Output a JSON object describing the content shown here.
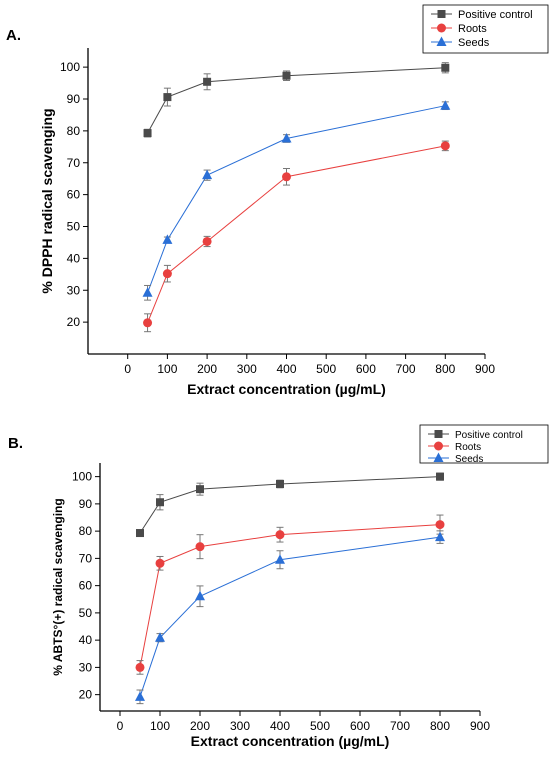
{
  "chart_data": [
    {
      "type": "line",
      "panel_label": "A.",
      "x": [
        50,
        100,
        200,
        400,
        800
      ],
      "xlabel": "Extract concentration (µg/mL)",
      "ylabel": "% DPPH  radical scavenging",
      "xlim": [
        -100,
        900
      ],
      "ylim": [
        10,
        106
      ],
      "xticks": [
        0,
        100,
        200,
        300,
        400,
        500,
        600,
        700,
        800,
        900
      ],
      "yticks": [
        20,
        30,
        40,
        50,
        60,
        70,
        80,
        90,
        100
      ],
      "legend": "top-right",
      "grid": false,
      "series": [
        {
          "name": "Positive control",
          "color": "#4a4a4a",
          "marker": "square",
          "values": [
            79.3,
            90.6,
            95.4,
            97.3,
            99.8
          ],
          "errors": [
            1.2,
            2.8,
            2.5,
            1.5,
            1.6
          ]
        },
        {
          "name": "Roots",
          "color": "#e8403f",
          "marker": "circle",
          "values": [
            19.8,
            35.2,
            45.3,
            65.6,
            75.3
          ],
          "errors": [
            2.8,
            2.6,
            1.6,
            2.6,
            1.5
          ]
        },
        {
          "name": "Seeds",
          "color": "#2a6fd6",
          "marker": "triangle",
          "values": [
            29.2,
            45.8,
            66.1,
            77.6,
            87.9
          ],
          "errors": [
            2.3,
            0.9,
            1.6,
            1.2,
            1.2
          ]
        }
      ]
    },
    {
      "type": "line",
      "panel_label": "B.",
      "x": [
        50,
        100,
        200,
        400,
        800
      ],
      "xlabel": "Extract concentration (µg/mL)",
      "ylabel": "% ABTS°(+) radical scavenging",
      "xlim": [
        -50,
        900
      ],
      "ylim": [
        14,
        105
      ],
      "xticks": [
        0,
        100,
        200,
        300,
        400,
        500,
        600,
        700,
        800,
        900
      ],
      "yticks": [
        20,
        30,
        40,
        50,
        60,
        70,
        80,
        90,
        100
      ],
      "legend": "top-right",
      "grid": false,
      "series": [
        {
          "name": "Positive control",
          "color": "#4a4a4a",
          "marker": "square",
          "values": [
            79.3,
            90.6,
            95.4,
            97.3,
            100.0
          ],
          "errors": [
            1.0,
            2.8,
            2.2,
            1.4,
            1.3
          ]
        },
        {
          "name": "Roots",
          "color": "#e8403f",
          "marker": "circle",
          "values": [
            30.0,
            68.2,
            74.3,
            78.7,
            82.4
          ],
          "errors": [
            2.5,
            2.5,
            4.4,
            2.7,
            3.5
          ]
        },
        {
          "name": "Seeds",
          "color": "#2a6fd6",
          "marker": "triangle",
          "values": [
            19.2,
            40.9,
            56.1,
            69.5,
            77.8
          ],
          "errors": [
            2.5,
            1.5,
            3.8,
            3.3,
            2.3
          ]
        }
      ]
    }
  ]
}
